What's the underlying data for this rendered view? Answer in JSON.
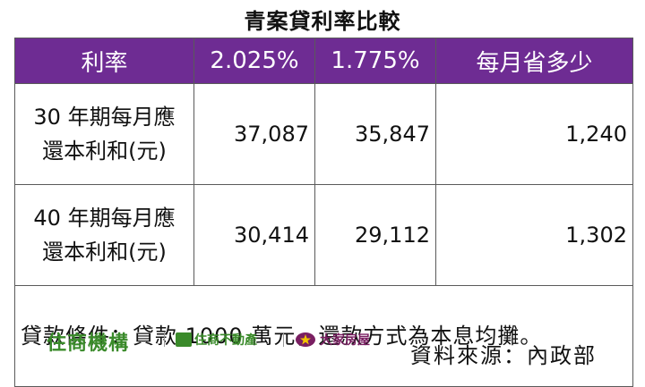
{
  "title": "青案貸利率比較",
  "table": {
    "headers": [
      "利率",
      "2.025%",
      "1.775%",
      "每月省多少"
    ],
    "rows": [
      {
        "label_line1": "30 年期每月應",
        "label_line2": "還本利和(元)",
        "values": [
          "37,087",
          "35,847",
          "1,240"
        ]
      },
      {
        "label_line1": "40 年期每月應",
        "label_line2": "還本利和(元)",
        "values": [
          "30,414",
          "29,112",
          "1,302"
        ]
      }
    ],
    "condition": "貸款條件：貸款 1000 萬元，還款方式為本息均攤。"
  },
  "footer": {
    "brand": "住商機構",
    "logo1_text": "住商不動產",
    "logo2_text": "大家房屋",
    "source": "資料來源：內政部"
  },
  "colors": {
    "header_bg": "#6e2c93",
    "brand_green": "#3a8a2a",
    "logo2": "#7a1f62"
  }
}
